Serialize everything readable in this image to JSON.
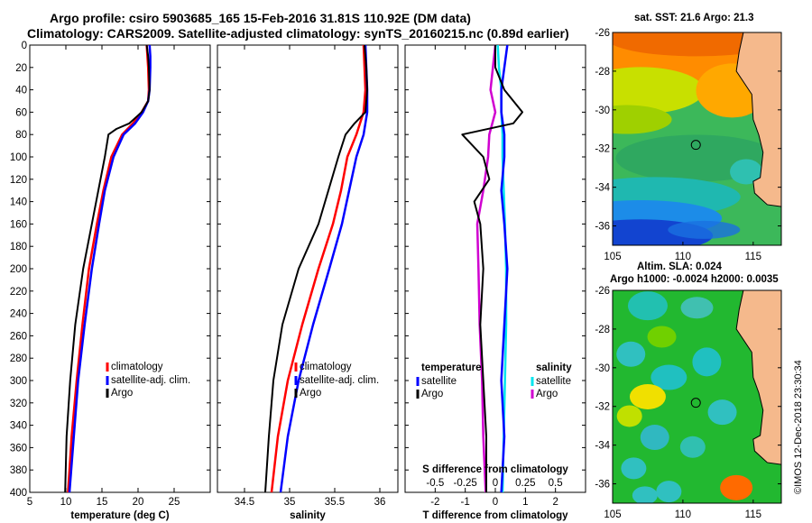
{
  "header": {
    "title_line1": "Argo profile: csiro 5903685_165 15-Feb-2016 31.81S 110.92E (DM data)",
    "title_line2": "Climatology: CARS2009. Satellite-adjusted climatology: synTS_20160215.nc (0.89d earlier)"
  },
  "stamp": "©IMOS 12-Dec-2018 23:30:34",
  "colors": {
    "climatology": "#ff0000",
    "satellite": "#0000ff",
    "argo": "#000000",
    "argo_salinity": "#d000d0",
    "satellite_salinity": "#00e5ee"
  },
  "chart_data": [
    {
      "type": "line",
      "title": "",
      "xlabel": "temperature (deg C)",
      "ylabel": "",
      "xlim": [
        5,
        30
      ],
      "ylim": [
        400,
        0
      ],
      "x_ticks": [
        "5",
        "10",
        "15",
        "20",
        "25"
      ],
      "y_ticks": [
        "0",
        "20",
        "40",
        "60",
        "80",
        "100",
        "120",
        "140",
        "160",
        "180",
        "200",
        "220",
        "240",
        "260",
        "280",
        "300",
        "320",
        "340",
        "360",
        "380",
        "400"
      ],
      "legend": [
        "climatology",
        "satellite-adj. clim.",
        "Argo"
      ],
      "series": [
        {
          "name": "climatology",
          "depth": [
            0,
            10,
            20,
            40,
            50,
            60,
            70,
            80,
            100,
            130,
            160,
            200,
            250,
            300,
            350,
            400
          ],
          "values": [
            21.2,
            21.3,
            21.4,
            21.5,
            21.4,
            20.5,
            19.3,
            17.8,
            16.3,
            15.2,
            14.3,
            13.2,
            12.3,
            11.5,
            10.8,
            10.3
          ]
        },
        {
          "name": "satellite-adj. clim.",
          "depth": [
            0,
            10,
            20,
            40,
            50,
            60,
            70,
            80,
            100,
            130,
            160,
            200,
            250,
            300,
            350,
            400
          ],
          "values": [
            21.6,
            21.7,
            21.7,
            21.6,
            21.4,
            20.7,
            19.6,
            18.0,
            16.6,
            15.4,
            14.6,
            13.6,
            12.6,
            11.7,
            11.1,
            10.5
          ]
        },
        {
          "name": "Argo",
          "depth": [
            0,
            10,
            20,
            40,
            50,
            60,
            70,
            75,
            80,
            100,
            130,
            160,
            200,
            250,
            300,
            350,
            400
          ],
          "values": [
            21.2,
            21.4,
            21.5,
            21.6,
            21.4,
            20.5,
            18.8,
            17.0,
            15.9,
            15.4,
            14.5,
            13.6,
            12.4,
            11.3,
            10.6,
            10.1,
            9.9
          ]
        }
      ]
    },
    {
      "type": "line",
      "title": "",
      "xlabel": "salinity",
      "ylabel": "",
      "xlim": [
        34.2,
        36.2
      ],
      "ylim": [
        400,
        0
      ],
      "x_ticks": [
        "34.5",
        "35",
        "35.5",
        "36"
      ],
      "legend": [
        "climatology",
        "satellite-adj. clim.",
        "Argo"
      ],
      "series": [
        {
          "name": "climatology",
          "depth": [
            0,
            20,
            40,
            60,
            80,
            100,
            130,
            160,
            200,
            250,
            300,
            350,
            400
          ],
          "values": [
            35.82,
            35.83,
            35.84,
            35.82,
            35.74,
            35.64,
            35.57,
            35.48,
            35.32,
            35.14,
            34.98,
            34.87,
            34.8
          ]
        },
        {
          "name": "satellite-adj. clim.",
          "depth": [
            0,
            20,
            40,
            60,
            80,
            100,
            130,
            160,
            200,
            250,
            300,
            350,
            400
          ],
          "values": [
            35.84,
            35.85,
            35.86,
            35.86,
            35.82,
            35.74,
            35.66,
            35.58,
            35.44,
            35.26,
            35.1,
            34.98,
            34.9
          ]
        },
        {
          "name": "Argo",
          "depth": [
            0,
            20,
            40,
            60,
            70,
            80,
            90,
            100,
            130,
            160,
            200,
            250,
            300,
            350,
            400
          ],
          "values": [
            35.83,
            35.85,
            35.86,
            35.84,
            35.72,
            35.62,
            35.58,
            35.54,
            35.43,
            35.32,
            35.1,
            34.92,
            34.82,
            34.77,
            34.73
          ]
        }
      ]
    },
    {
      "type": "line",
      "title": "",
      "xlabel": "T difference from climatology",
      "xlabel_top": "S difference from climatology",
      "xlim": [
        -3,
        3
      ],
      "ylim": [
        400,
        0
      ],
      "x_ticks": [
        "-2",
        "-1",
        "0",
        "1",
        "2"
      ],
      "x_ticks_top": [
        "-0.5",
        "-0.25",
        "0",
        "0.25",
        "0.5"
      ],
      "legend_left_title": "temperature",
      "legend_right_title": "salinity",
      "legend": [
        "satellite",
        "Argo",
        "satellite",
        "Argo"
      ],
      "series": [
        {
          "name": "temperature satellite",
          "depth": [
            0,
            20,
            40,
            60,
            80,
            100,
            130,
            160,
            200,
            250,
            300,
            350,
            400
          ],
          "values": [
            0.4,
            0.3,
            0.2,
            0.2,
            0.3,
            0.3,
            0.2,
            0.3,
            0.4,
            0.3,
            0.2,
            0.3,
            0.2
          ]
        },
        {
          "name": "temperature Argo",
          "depth": [
            0,
            20,
            40,
            60,
            70,
            80,
            100,
            120,
            140,
            160,
            200,
            250,
            300,
            350,
            400
          ],
          "values": [
            0.0,
            0.0,
            0.3,
            0.9,
            0.6,
            -1.1,
            -0.4,
            -0.2,
            -0.7,
            -0.5,
            -0.4,
            -0.5,
            -0.4,
            -0.3,
            -0.3
          ]
        },
        {
          "name": "salinity satellite",
          "depth": [
            0,
            20,
            40,
            60,
            80,
            100,
            130,
            160,
            200,
            250,
            300,
            350,
            400
          ],
          "values": [
            0.02,
            0.03,
            0.05,
            0.05,
            0.06,
            0.06,
            0.07,
            0.08,
            0.09,
            0.09,
            0.08,
            0.07,
            0.06
          ]
        },
        {
          "name": "salinity Argo",
          "depth": [
            0,
            20,
            40,
            60,
            80,
            100,
            130,
            160,
            200,
            250,
            300,
            350,
            400
          ],
          "values": [
            0.0,
            -0.02,
            -0.04,
            0.0,
            -0.05,
            -0.06,
            -0.1,
            -0.15,
            -0.14,
            -0.13,
            -0.11,
            -0.1,
            -0.08
          ]
        }
      ]
    },
    {
      "type": "heatmap",
      "title": "sat. SST: 21.6 Argo: 21.3",
      "xlim": [
        105,
        117
      ],
      "ylim": [
        -37,
        -26
      ],
      "x_ticks": [
        "105",
        "110",
        "115"
      ],
      "y_ticks": [
        "-26",
        "-28",
        "-30",
        "-32",
        "-34",
        "-36"
      ],
      "marker": {
        "lon": 110.92,
        "lat": -31.81
      }
    },
    {
      "type": "heatmap",
      "title": "Altim. SLA: 0.024",
      "subtitle": "Argo h1000: -0.0024 h2000: 0.0035",
      "xlim": [
        105,
        117
      ],
      "ylim": [
        -37,
        -26
      ],
      "x_ticks": [
        "105",
        "110",
        "115"
      ],
      "y_ticks": [
        "-26",
        "-28",
        "-30",
        "-32",
        "-34",
        "-36"
      ],
      "marker": {
        "lon": 110.92,
        "lat": -31.81
      }
    }
  ]
}
